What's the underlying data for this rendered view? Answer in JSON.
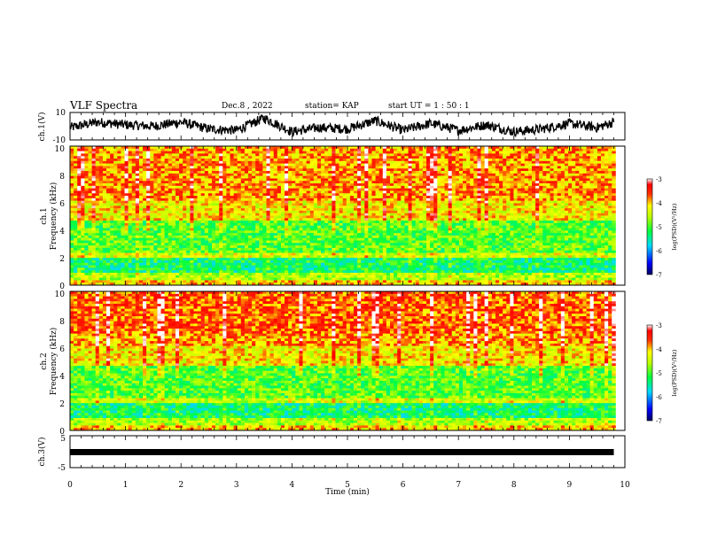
{
  "header": {
    "title": "VLF Spectra",
    "date": "Dec.8 , 2022",
    "station": "station= KAP",
    "start": "start UT = 1 : 50 : 1"
  },
  "chart_data": [
    {
      "type": "line",
      "ylabel": "ch.1(V)",
      "ylim": [
        -10,
        10
      ],
      "yticks": [
        "10",
        "-10"
      ],
      "xlim": [
        0,
        10
      ],
      "x_unit": "min",
      "series": [
        {
          "x": [
            0,
            0.5,
            1,
            1.5,
            2,
            2.5,
            3,
            3.5,
            4,
            4.5,
            5,
            5.5,
            6,
            6.5,
            7,
            7.5,
            8,
            8.5,
            9,
            9.5,
            9.8
          ],
          "values": [
            -1,
            3,
            1,
            0,
            3,
            -2,
            -3,
            6,
            -4,
            -1,
            -2,
            4,
            -3,
            2,
            -3,
            1,
            -4,
            -2,
            2,
            -1,
            3
          ]
        }
      ]
    },
    {
      "type": "heatmap",
      "ylabel": "ch.1\nFrequency (kHz)",
      "ylim": [
        0,
        10
      ],
      "yticks": [
        "0",
        "2",
        "4",
        "6",
        "8",
        "10"
      ],
      "xlim": [
        0,
        10
      ],
      "colorbar": {
        "label": "log(PSD)(V²/Hz)",
        "range": [
          -7,
          -3
        ],
        "ticks": [
          "-3",
          "-4",
          "-5",
          "-6",
          "-7"
        ]
      }
    },
    {
      "type": "heatmap",
      "ylabel": "ch.2\nFrequency (kHz)",
      "ylim": [
        0,
        10
      ],
      "yticks": [
        "0",
        "2",
        "4",
        "6",
        "8",
        "10"
      ],
      "xlim": [
        0,
        10
      ],
      "colorbar": {
        "label": "log(PSD)(V²/Hz)",
        "range": [
          -7,
          -3
        ],
        "ticks": [
          "-3",
          "-4",
          "-5",
          "-6",
          "-7"
        ]
      }
    },
    {
      "type": "line",
      "ylabel": "ch.3(V)",
      "ylim": [
        -5,
        5
      ],
      "yticks": [
        "5",
        "-5"
      ],
      "xlim": [
        0,
        10
      ],
      "xlabel": "Time (min)",
      "xticks": [
        "0",
        "1",
        "2",
        "3",
        "4",
        "5",
        "6",
        "7",
        "8",
        "9",
        "10"
      ],
      "series": [
        {
          "x": [
            0,
            9.8
          ],
          "values": [
            0,
            0
          ]
        }
      ]
    }
  ]
}
